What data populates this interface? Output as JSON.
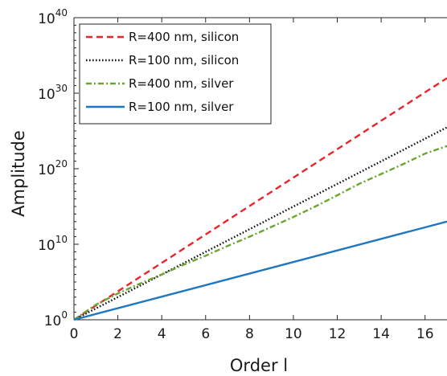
{
  "chart_data": {
    "type": "line",
    "xlabel": "Order l",
    "ylabel": "Amplitude",
    "y_scale": "log",
    "xlim": [
      0,
      17
    ],
    "ylim": [
      1,
      1e+40
    ],
    "x_ticks": [
      0,
      2,
      4,
      6,
      8,
      10,
      12,
      14,
      16
    ],
    "y_ticks": [
      {
        "base": "10",
        "exp": "0",
        "value": 1
      },
      {
        "base": "10",
        "exp": "10",
        "value": 10000000000.0
      },
      {
        "base": "10",
        "exp": "20",
        "value": 1e+20
      },
      {
        "base": "10",
        "exp": "30",
        "value": 1e+30
      },
      {
        "base": "10",
        "exp": "40",
        "value": 1e+40
      }
    ],
    "legend_position": "top-left",
    "series": [
      {
        "name": "R=400 nm, silicon",
        "color": "#e8262a",
        "style": "dashed",
        "x": [
          0,
          17
        ],
        "y": [
          1,
          1e+32
        ]
      },
      {
        "name": "R=100 nm, silicon",
        "color": "#111111",
        "style": "dotted",
        "x": [
          0,
          17
        ],
        "y": [
          1,
          3e+25
        ]
      },
      {
        "name": "R=400 nm, silver",
        "color": "#6aa630",
        "style": "dashdot",
        "x": [
          0,
          1,
          2,
          3,
          4,
          5,
          6,
          7,
          8,
          9,
          10,
          11,
          12,
          13,
          14,
          15,
          16,
          17
        ],
        "y": [
          1,
          100.0,
          3000.0,
          60000.0,
          1000000.0,
          20000000.0,
          300000000.0,
          6000000000.0,
          100000000000.0,
          2000000000000.0,
          40000000000000.0,
          1000000000000000.0,
          3e+16,
          1e+18,
          2e+19,
          4e+20,
          1e+22,
          1e+23
        ]
      },
      {
        "name": "R=100 nm, silver",
        "color": "#1f77c0",
        "style": "solid",
        "x": [
          0,
          17
        ],
        "y": [
          1,
          10000000000000.0
        ]
      }
    ]
  }
}
